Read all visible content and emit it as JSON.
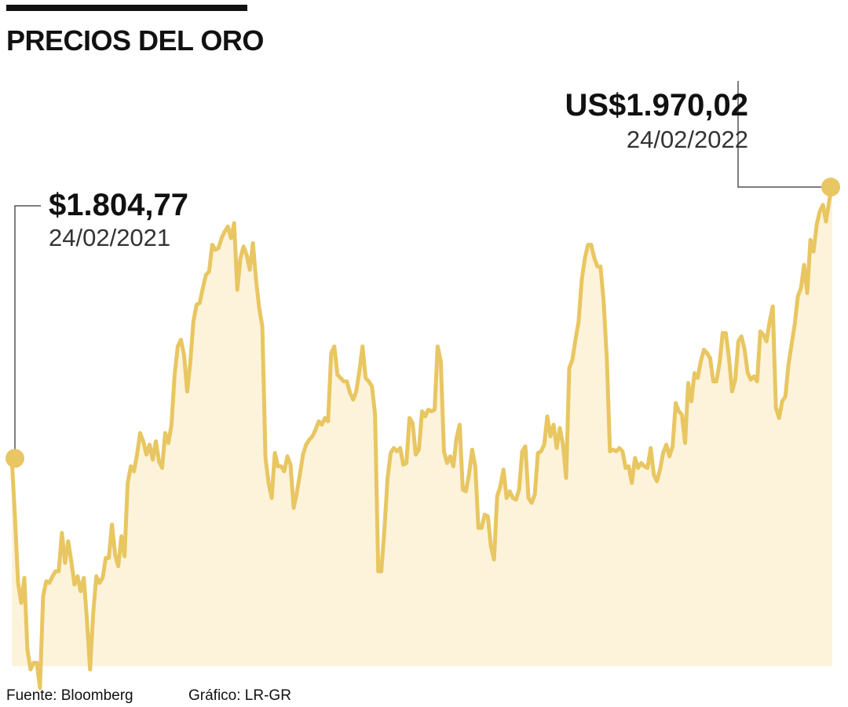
{
  "title": "PRECIOS DEL ORO",
  "annotations": {
    "start": {
      "value": "$1.804,77",
      "date": "24/02/2021"
    },
    "end": {
      "value": "US$1.970,02",
      "date": "24/02/2022"
    }
  },
  "footer": {
    "source": "Fuente: Bloomberg",
    "credit": "Gráfico: LR-GR"
  },
  "colors": {
    "line": "#E8C661",
    "fill": "#FDF3DB",
    "marker": "#E8C661",
    "leader": "#555555"
  },
  "chart_data": {
    "type": "area",
    "x_start": "24/02/2021",
    "x_end": "24/02/2022",
    "ylim": [
      1680,
      2080
    ],
    "grid": false,
    "legend": "none",
    "series": [
      {
        "values": [
          1804.77,
          1770,
          1730,
          1718,
          1733,
          1690,
          1678,
          1682,
          1682,
          1667,
          1722,
          1731,
          1730,
          1734,
          1737,
          1737,
          1760,
          1742,
          1755,
          1743,
          1729,
          1734,
          1725,
          1733,
          1708,
          1678,
          1712,
          1734,
          1730,
          1733,
          1745,
          1745,
          1765,
          1747,
          1740,
          1758,
          1746,
          1790,
          1800,
          1797,
          1807,
          1820,
          1815,
          1807,
          1813,
          1804,
          1815,
          1803,
          1799,
          1820,
          1814,
          1825,
          1855,
          1872,
          1876,
          1867,
          1845,
          1862,
          1887,
          1897,
          1898,
          1907,
          1915,
          1917,
          1933,
          1930,
          1931,
          1937,
          1941,
          1944,
          1937,
          1946,
          1906,
          1925,
          1932,
          1927,
          1918,
          1934,
          1912,
          1895,
          1884,
          1805,
          1790,
          1781,
          1808,
          1800,
          1800,
          1797,
          1806,
          1801,
          1775,
          1784,
          1795,
          1807,
          1813,
          1816,
          1818,
          1822,
          1827,
          1825,
          1829,
          1827,
          1868,
          1872,
          1855,
          1853,
          1851,
          1851,
          1844,
          1840,
          1845,
          1857,
          1872,
          1853,
          1851,
          1848,
          1831,
          1737,
          1737,
          1762,
          1793,
          1808,
          1811,
          1809,
          1811,
          1801,
          1802,
          1829,
          1826,
          1807,
          1810,
          1833,
          1830,
          1834,
          1833,
          1834,
          1872,
          1863,
          1809,
          1802,
          1806,
          1800,
          1817,
          1825,
          1786,
          1785,
          1795,
          1810,
          1800,
          1763,
          1763,
          1771,
          1770,
          1752,
          1744,
          1782,
          1788,
          1798,
          1781,
          1785,
          1781,
          1780,
          1786,
          1809,
          1812,
          1781,
          1778,
          1783,
          1808,
          1809,
          1813,
          1830,
          1818,
          1825,
          1811,
          1823,
          1813,
          1793,
          1859,
          1864,
          1876,
          1887,
          1912,
          1925,
          1933,
          1933,
          1925,
          1920,
          1920,
          1899,
          1865,
          1809,
          1810,
          1809,
          1811,
          1809,
          1799,
          1800,
          1790,
          1805,
          1799,
          1802,
          1800,
          1799,
          1811,
          1795,
          1791,
          1798,
          1808,
          1813,
          1806,
          1812,
          1838,
          1833,
          1831,
          1814,
          1850,
          1839,
          1856,
          1853,
          1863,
          1870,
          1868,
          1865,
          1851,
          1851,
          1862,
          1880,
          1880,
          1865,
          1845,
          1852,
          1875,
          1878,
          1870,
          1856,
          1852,
          1854,
          1851,
          1881,
          1879,
          1875,
          1887,
          1896,
          1835,
          1829,
          1839,
          1842,
          1861,
          1873,
          1885,
          1902,
          1907,
          1921,
          1904,
          1936,
          1929,
          1945,
          1953,
          1957,
          1947,
          1959,
          1970.02
        ]
      }
    ]
  }
}
